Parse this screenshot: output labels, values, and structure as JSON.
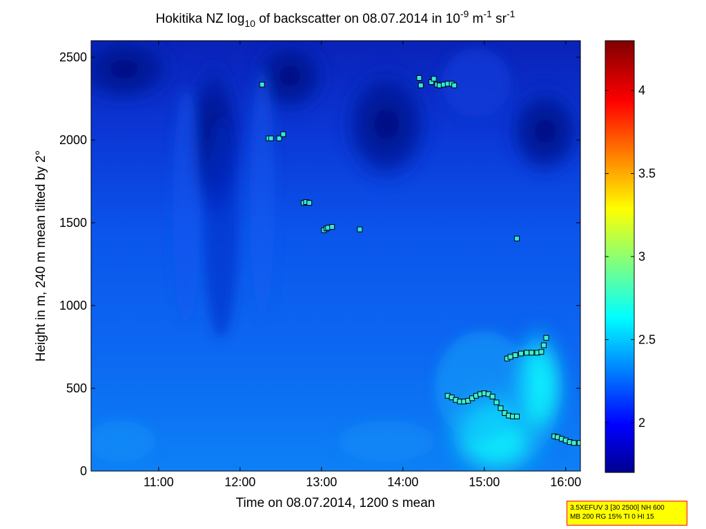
{
  "chart_data": {
    "type": "heatmap",
    "title": {
      "prefix": "Hokitika NZ log",
      "sub": "10",
      "mid": " of backscatter on 08.07.2014 in 10",
      "sup1": "-9",
      "mid2": " m",
      "sup2": "-1",
      "mid3": " sr",
      "sup3": "-1"
    },
    "xlabel": "Time on 08.07.2014, 1200 s mean",
    "ylabel": "Height in m, 240 m mean tilted by 2°",
    "xlim": [
      10.17,
      16.18
    ],
    "ylim": [
      0,
      2600
    ],
    "x_ticks": [
      {
        "value": 11,
        "label": "11:00"
      },
      {
        "value": 12,
        "label": "12:00"
      },
      {
        "value": 13,
        "label": "13:00"
      },
      {
        "value": 14,
        "label": "14:00"
      },
      {
        "value": 15,
        "label": "15:00"
      },
      {
        "value": 16,
        "label": "16:00"
      }
    ],
    "y_ticks": [
      {
        "value": 0,
        "label": "0"
      },
      {
        "value": 500,
        "label": "500"
      },
      {
        "value": 1000,
        "label": "1000"
      },
      {
        "value": 1500,
        "label": "1500"
      },
      {
        "value": 2000,
        "label": "2000"
      },
      {
        "value": 2500,
        "label": "2500"
      }
    ],
    "colorbar": {
      "clim": [
        1.7,
        4.3
      ],
      "colormap": "jet",
      "ticks": [
        {
          "value": 2,
          "label": "2"
        },
        {
          "value": 2.5,
          "label": "2.5"
        },
        {
          "value": 3,
          "label": "3"
        },
        {
          "value": 3.5,
          "label": "3.5"
        },
        {
          "value": 4,
          "label": "4"
        }
      ]
    },
    "field_description_values": {
      "upper_band_dark": 1.85,
      "mid_band": 2.2,
      "lower_band": 2.35,
      "bright_plume_max": 2.7
    },
    "markers": [
      [
        12.27,
        2335
      ],
      [
        12.35,
        2010
      ],
      [
        12.38,
        2010
      ],
      [
        12.48,
        2010
      ],
      [
        12.53,
        2035
      ],
      [
        12.78,
        1620
      ],
      [
        12.81,
        1625
      ],
      [
        12.85,
        1620
      ],
      [
        13.03,
        1455
      ],
      [
        13.06,
        1465
      ],
      [
        13.08,
        1470
      ],
      [
        13.13,
        1475
      ],
      [
        13.47,
        1460
      ],
      [
        14.2,
        2375
      ],
      [
        14.22,
        2330
      ],
      [
        14.35,
        2350
      ],
      [
        14.38,
        2370
      ],
      [
        14.42,
        2335
      ],
      [
        14.45,
        2330
      ],
      [
        14.5,
        2335
      ],
      [
        14.55,
        2340
      ],
      [
        14.6,
        2340
      ],
      [
        14.63,
        2330
      ],
      [
        15.4,
        1405
      ],
      [
        14.55,
        455
      ],
      [
        14.6,
        445
      ],
      [
        14.65,
        430
      ],
      [
        14.7,
        420
      ],
      [
        14.75,
        420
      ],
      [
        14.8,
        425
      ],
      [
        14.85,
        440
      ],
      [
        14.9,
        455
      ],
      [
        14.95,
        465
      ],
      [
        15.0,
        470
      ],
      [
        15.05,
        465
      ],
      [
        15.1,
        450
      ],
      [
        15.15,
        415
      ],
      [
        15.2,
        380
      ],
      [
        15.25,
        350
      ],
      [
        15.3,
        335
      ],
      [
        15.35,
        330
      ],
      [
        15.4,
        330
      ],
      [
        15.28,
        680
      ],
      [
        15.32,
        690
      ],
      [
        15.38,
        700
      ],
      [
        15.45,
        710
      ],
      [
        15.52,
        715
      ],
      [
        15.58,
        715
      ],
      [
        15.65,
        715
      ],
      [
        15.7,
        720
      ],
      [
        15.73,
        760
      ],
      [
        15.76,
        805
      ],
      [
        15.86,
        210
      ],
      [
        15.9,
        205
      ],
      [
        15.95,
        195
      ],
      [
        16.0,
        185
      ],
      [
        16.05,
        175
      ],
      [
        16.1,
        170
      ],
      [
        16.17,
        170
      ]
    ]
  },
  "info_box": {
    "line1": "3.5XEFUV 3 [30 2500] NH 600",
    "line2": "MB 200 RG 15% TI 0 HI 15"
  }
}
